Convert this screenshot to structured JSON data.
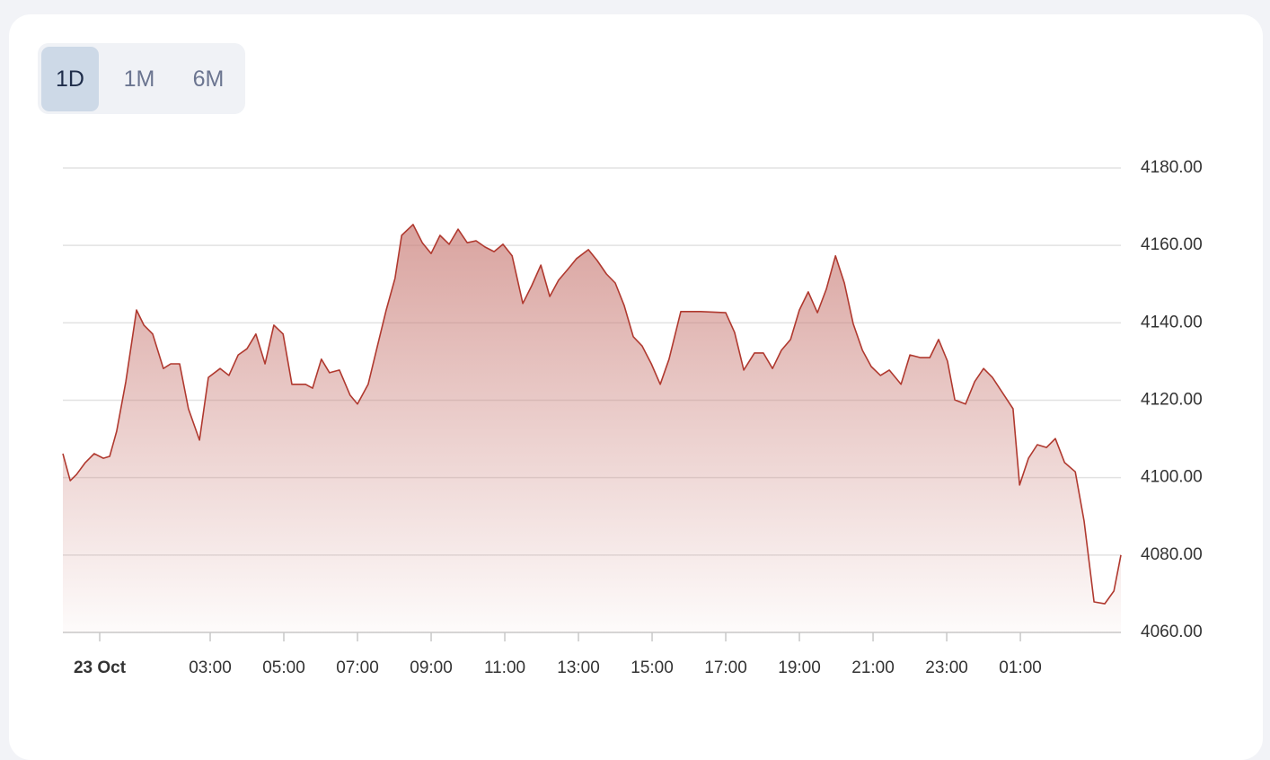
{
  "range_selector": {
    "options": [
      "1D",
      "1M",
      "6M"
    ],
    "active": 0
  },
  "chart_data": {
    "type": "area",
    "x": [
      -1.0,
      -0.8,
      -0.63,
      -0.39,
      -0.15,
      0.1,
      0.27,
      0.46,
      0.71,
      1.0,
      1.2,
      1.44,
      1.73,
      1.93,
      2.17,
      2.41,
      2.71,
      2.95,
      3.27,
      3.51,
      3.76,
      4.0,
      4.24,
      4.49,
      4.73,
      4.98,
      5.22,
      5.59,
      5.78,
      6.02,
      6.24,
      6.51,
      6.8,
      7.0,
      7.29,
      7.54,
      7.78,
      8.02,
      8.2,
      8.51,
      8.76,
      9.0,
      9.24,
      9.49,
      9.73,
      9.98,
      10.22,
      10.46,
      10.71,
      10.95,
      11.2,
      11.49,
      11.73,
      11.98,
      12.22,
      12.46,
      12.71,
      12.95,
      13.27,
      13.51,
      13.76,
      14.0,
      14.24,
      14.49,
      14.73,
      14.98,
      15.22,
      15.46,
      15.78,
      16.32,
      17.0,
      17.24,
      17.49,
      17.78,
      18.02,
      18.27,
      18.51,
      18.76,
      19.0,
      19.24,
      19.49,
      19.73,
      19.98,
      20.22,
      20.46,
      20.71,
      20.95,
      21.2,
      21.44,
      21.76,
      22.0,
      22.29,
      22.54,
      22.78,
      23.02,
      23.22,
      23.51,
      23.76,
      24.0,
      24.24,
      24.56,
      24.8,
      24.98,
      25.22,
      25.46,
      25.71,
      25.95,
      26.2,
      26.49,
      26.73,
      27.0,
      27.29,
      27.54,
      27.73
    ],
    "series": [
      {
        "color": "#b0392f",
        "values": [
          4106.2,
          4099.2,
          4100.8,
          4103.9,
          4106.2,
          4105.0,
          4105.5,
          4112.0,
          4124.8,
          4143.3,
          4139.4,
          4137.1,
          4128.2,
          4129.4,
          4129.4,
          4117.8,
          4109.7,
          4125.9,
          4128.2,
          4126.4,
          4131.7,
          4133.3,
          4137.1,
          4129.4,
          4139.4,
          4137.1,
          4124.1,
          4124.1,
          4123.1,
          4130.6,
          4127.1,
          4127.8,
          4121.3,
          4119.0,
          4124.1,
          4134.0,
          4143.3,
          4151.5,
          4162.6,
          4165.4,
          4160.7,
          4157.9,
          4162.6,
          4160.3,
          4164.2,
          4160.7,
          4161.2,
          4159.6,
          4158.4,
          4160.3,
          4157.3,
          4145.0,
          4149.6,
          4154.9,
          4146.8,
          4151.0,
          4153.8,
          4156.6,
          4158.9,
          4156.1,
          4152.6,
          4150.3,
          4144.5,
          4136.4,
          4134.0,
          4129.4,
          4124.1,
          4130.6,
          4142.9,
          4142.9,
          4142.6,
          4137.5,
          4127.8,
          4132.2,
          4132.2,
          4128.2,
          4132.9,
          4135.7,
          4143.3,
          4148.0,
          4142.6,
          4148.7,
          4157.3,
          4150.3,
          4139.8,
          4132.9,
          4128.7,
          4126.4,
          4127.8,
          4124.1,
          4131.7,
          4131.0,
          4131.0,
          4135.7,
          4130.1,
          4120.1,
          4119.0,
          4124.8,
          4128.2,
          4125.9,
          4121.3,
          4117.8,
          4098.1,
          4105.0,
          4108.5,
          4107.8,
          4110.1,
          4103.9,
          4101.5,
          4088.8,
          4067.9,
          4067.4,
          4070.7,
          4080.0
        ]
      }
    ],
    "xlim": [
      -1,
      27.73
    ],
    "xticks": [
      {
        "value": 0,
        "label": "23 Oct"
      },
      {
        "value": 3,
        "label": "03:00"
      },
      {
        "value": 5,
        "label": "05:00"
      },
      {
        "value": 7,
        "label": "07:00"
      },
      {
        "value": 9,
        "label": "09:00"
      },
      {
        "value": 11,
        "label": "11:00"
      },
      {
        "value": 13,
        "label": "13:00"
      },
      {
        "value": 15,
        "label": "15:00"
      },
      {
        "value": 17,
        "label": "17:00"
      },
      {
        "value": 19,
        "label": "19:00"
      },
      {
        "value": 21,
        "label": "21:00"
      },
      {
        "value": 23,
        "label": "23:00"
      },
      {
        "value": 25,
        "label": "01:00"
      }
    ],
    "ylim": [
      4060,
      4180
    ],
    "yticks": [
      {
        "value": 4060,
        "label": "4060.00"
      },
      {
        "value": 4080,
        "label": "4080.00"
      },
      {
        "value": 4100,
        "label": "4100.00"
      },
      {
        "value": 4120,
        "label": "4120.00"
      },
      {
        "value": 4140,
        "label": "4140.00"
      },
      {
        "value": 4160,
        "label": "4160.00"
      },
      {
        "value": 4180,
        "label": "4180.00"
      }
    ],
    "grid": true
  }
}
